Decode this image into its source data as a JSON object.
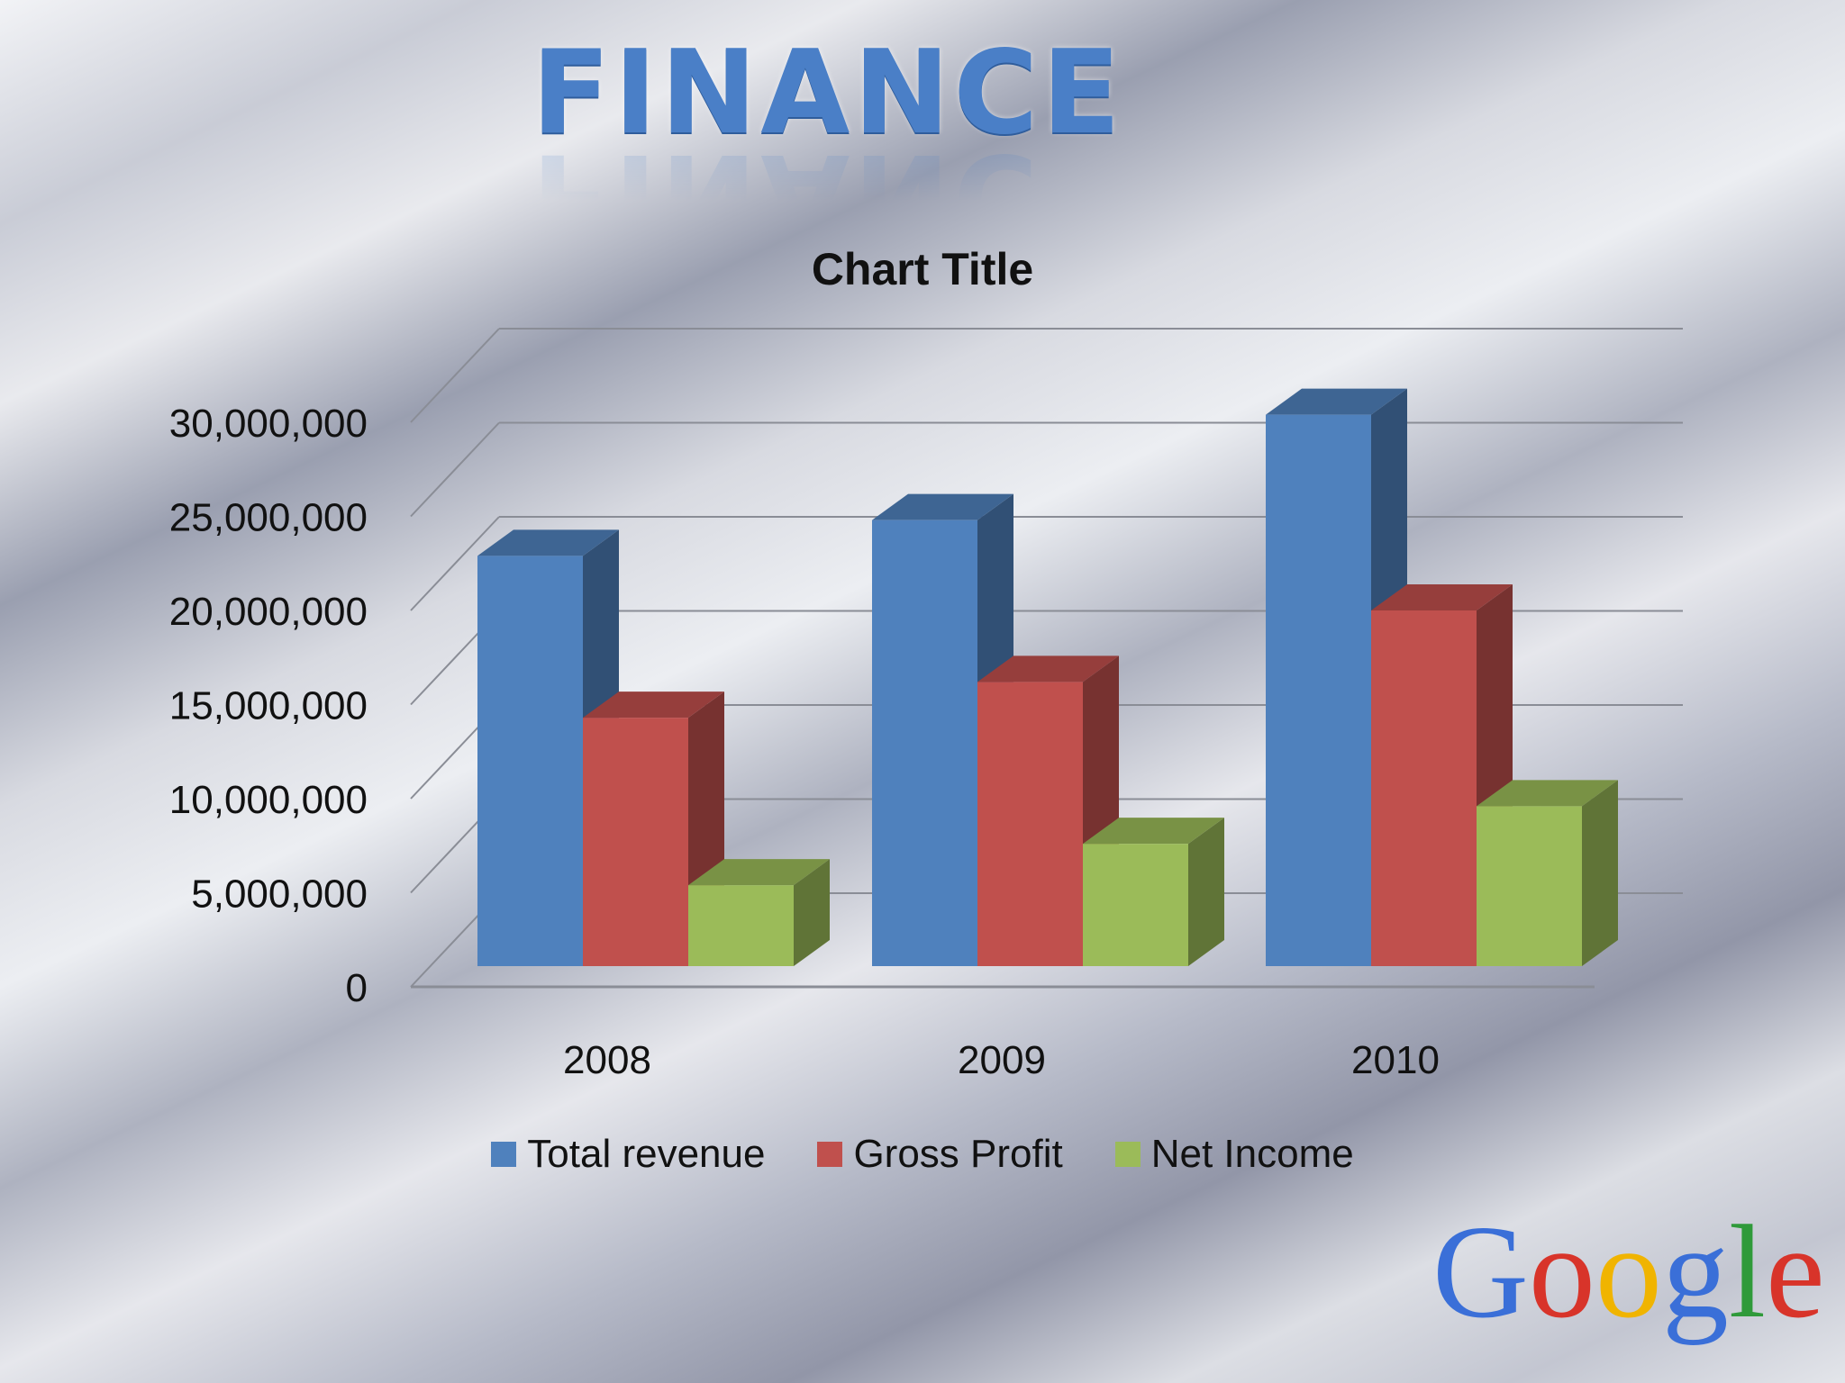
{
  "slide": {
    "title": "FINANCE",
    "logo_text": "Google",
    "logo_colors": [
      "#3a6fd8",
      "#d8342a",
      "#f0b400",
      "#3a6fd8",
      "#2f9a3a",
      "#d8342a"
    ]
  },
  "chart_data": {
    "type": "bar",
    "title": "Chart Title",
    "categories": [
      "2008",
      "2009",
      "2010"
    ],
    "series": [
      {
        "name": "Total revenue",
        "values": [
          21800000,
          23700000,
          29300000
        ],
        "color": "#4f81bd"
      },
      {
        "name": "Gross Profit",
        "values": [
          13200000,
          15100000,
          18900000
        ],
        "color": "#c0504d"
      },
      {
        "name": "Net Income",
        "values": [
          4300000,
          6500000,
          8500000
        ],
        "color": "#9bbb59"
      }
    ],
    "yticks": [
      "0",
      "5,000,000",
      "10,000,000",
      "15,000,000",
      "20,000,000",
      "25,000,000",
      "30,000,000"
    ],
    "ylim": [
      0,
      30000000
    ],
    "grid": true,
    "legend_position": "bottom",
    "style": "3d-clustered-column"
  }
}
